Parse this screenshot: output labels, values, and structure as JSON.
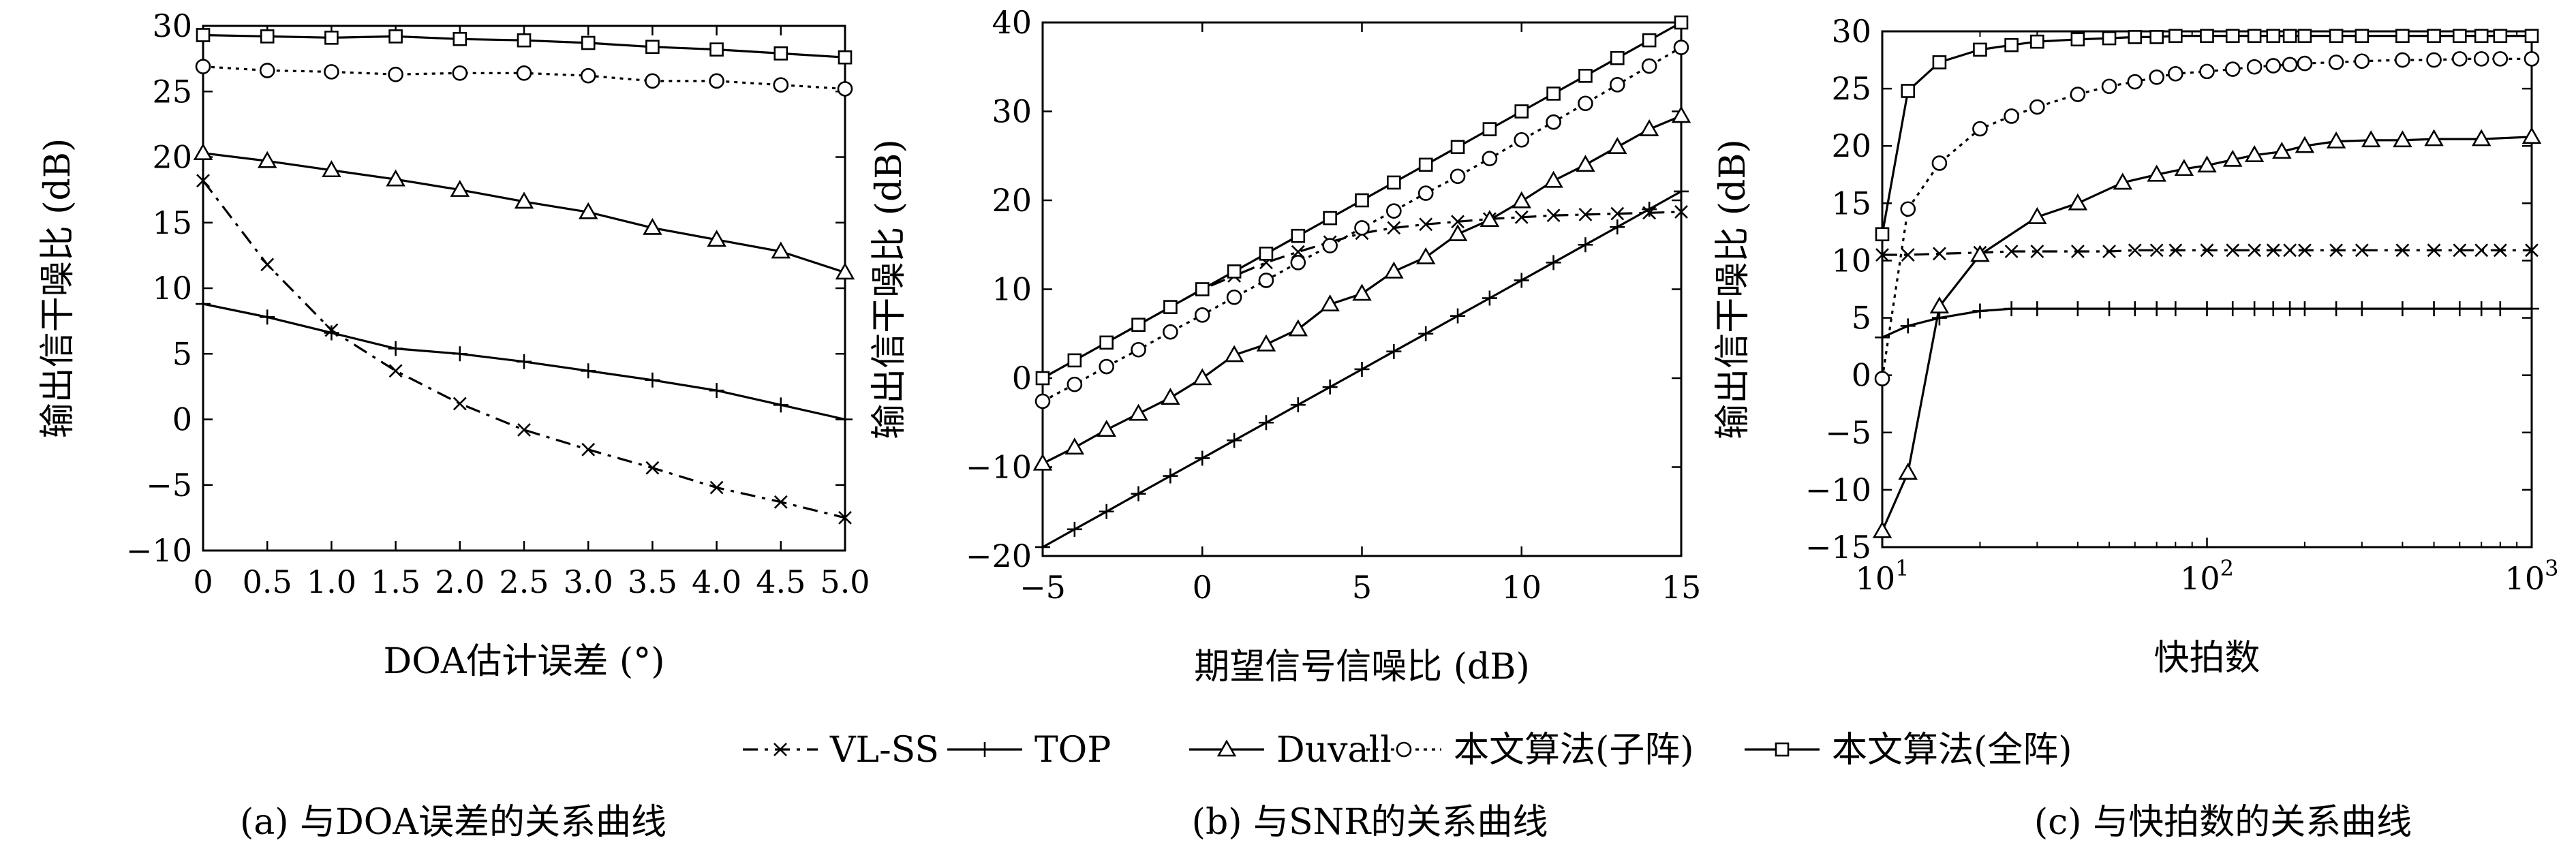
{
  "chart_data": [
    {
      "type": "line",
      "title": "",
      "caption": "(a) 与DOA误差的关系曲线",
      "xlabel": "DOA估计误差 (°)",
      "ylabel": "输出信干噪比 (dB)",
      "xscale": "linear",
      "xlim": [
        0,
        5.0
      ],
      "ylim": [
        -10,
        30
      ],
      "xticks": [
        0,
        0.5,
        1.0,
        1.5,
        2.0,
        2.5,
        3.0,
        3.5,
        4.0,
        4.5,
        5.0
      ],
      "xtick_labels": [
        "0",
        "0.5",
        "1.0",
        "1.5",
        "2.0",
        "2.5",
        "3.0",
        "3.5",
        "4.0",
        "4.5",
        "5.0"
      ],
      "yticks": [
        -10,
        -5,
        0,
        5,
        10,
        15,
        20,
        25,
        30
      ],
      "ytick_labels": [
        "−10",
        "−5",
        "0",
        "5",
        "10",
        "15",
        "20",
        "25",
        "30"
      ],
      "grid": false,
      "series": [
        {
          "name": "VL-SS",
          "x": [
            0,
            0.5,
            1.0,
            1.5,
            2.0,
            2.5,
            3.0,
            3.5,
            4.0,
            4.5,
            5.0
          ],
          "y": [
            18.2,
            11.8,
            6.8,
            3.7,
            1.2,
            -0.8,
            -2.3,
            -3.7,
            -5.2,
            -6.3,
            -7.5
          ]
        },
        {
          "name": "TOP",
          "x": [
            0,
            0.5,
            1.0,
            1.5,
            2.0,
            2.5,
            3.0,
            3.5,
            4.0,
            4.5,
            5.0
          ],
          "y": [
            8.8,
            7.8,
            6.6,
            5.4,
            5.0,
            4.4,
            3.7,
            3.0,
            2.2,
            1.1,
            0.0
          ]
        },
        {
          "name": "Duvall",
          "x": [
            0,
            0.5,
            1.0,
            1.5,
            2.0,
            2.5,
            3.0,
            3.5,
            4.0,
            4.5,
            5.0
          ],
          "y": [
            20.3,
            19.7,
            19.0,
            18.3,
            17.5,
            16.6,
            15.8,
            14.6,
            13.7,
            12.8,
            11.2
          ]
        },
        {
          "name": "本文算法(子阵)",
          "x": [
            0,
            0.5,
            1.0,
            1.5,
            2.0,
            2.5,
            3.0,
            3.5,
            4.0,
            4.5,
            5.0
          ],
          "y": [
            26.9,
            26.6,
            26.5,
            26.3,
            26.4,
            26.4,
            26.2,
            25.8,
            25.8,
            25.5,
            25.2
          ]
        },
        {
          "name": "本文算法(全阵)",
          "x": [
            0,
            0.5,
            1.0,
            1.5,
            2.0,
            2.5,
            3.0,
            3.5,
            4.0,
            4.5,
            5.0
          ],
          "y": [
            29.3,
            29.2,
            29.1,
            29.2,
            29.0,
            28.9,
            28.7,
            28.4,
            28.2,
            27.9,
            27.6
          ]
        }
      ]
    },
    {
      "type": "line",
      "title": "",
      "caption": "(b) 与SNR的关系曲线",
      "xlabel": "期望信号信噪比 (dB)",
      "ylabel": "输出信干噪比 (dB)",
      "xscale": "linear",
      "xlim": [
        -5,
        15
      ],
      "ylim": [
        -20,
        40
      ],
      "xticks": [
        -5,
        0,
        5,
        10,
        15
      ],
      "xtick_labels": [
        "−5",
        "0",
        "5",
        "10",
        "15"
      ],
      "yticks": [
        -20,
        -10,
        0,
        10,
        20,
        30,
        40
      ],
      "ytick_labels": [
        "−20",
        "−10",
        "0",
        "10",
        "20",
        "30",
        "40"
      ],
      "grid": false,
      "series": [
        {
          "name": "VL-SS",
          "x": [
            -5,
            -4,
            -3,
            -2,
            -1,
            0,
            1,
            2,
            3,
            4,
            5,
            6,
            7,
            8,
            9,
            10,
            11,
            12,
            13,
            14,
            15
          ],
          "y": [
            0.0,
            2.0,
            4.0,
            6.0,
            8.0,
            10.0,
            11.5,
            13.0,
            14.2,
            15.3,
            16.3,
            16.9,
            17.3,
            17.6,
            17.9,
            18.1,
            18.3,
            18.4,
            18.5,
            18.6,
            18.7
          ]
        },
        {
          "name": "TOP",
          "x": [
            -5,
            -4,
            -3,
            -2,
            -1,
            0,
            1,
            2,
            3,
            4,
            5,
            6,
            7,
            8,
            9,
            10,
            11,
            12,
            13,
            14,
            15
          ],
          "y": [
            -19.0,
            -17.0,
            -15.0,
            -13.0,
            -11.0,
            -9.0,
            -7.0,
            -5.0,
            -3.0,
            -1.0,
            1.0,
            3.0,
            5.0,
            7.0,
            9.0,
            11.0,
            13.0,
            15.0,
            17.0,
            19.0,
            21.0
          ]
        },
        {
          "name": "Duvall",
          "x": [
            -5,
            -4,
            -3,
            -2,
            -1,
            0,
            1,
            2,
            3,
            4,
            5,
            6,
            7,
            8,
            9,
            10,
            11,
            12,
            13,
            14,
            15
          ],
          "y": [
            -9.6,
            -7.8,
            -5.8,
            -4.0,
            -2.2,
            0.0,
            2.6,
            3.8,
            5.5,
            8.3,
            9.5,
            12.0,
            13.6,
            16.2,
            17.8,
            19.9,
            22.2,
            24.0,
            26.0,
            28.0,
            29.5
          ]
        },
        {
          "name": "本文算法(子阵)",
          "x": [
            -5,
            -4,
            -3,
            -2,
            -1,
            0,
            1,
            2,
            3,
            4,
            5,
            6,
            7,
            8,
            9,
            10,
            11,
            12,
            13,
            14,
            15
          ],
          "y": [
            -2.6,
            -0.7,
            1.3,
            3.2,
            5.2,
            7.1,
            9.1,
            11.0,
            13.0,
            14.9,
            16.9,
            18.8,
            20.8,
            22.7,
            24.7,
            26.8,
            28.8,
            30.9,
            33.0,
            35.1,
            37.2
          ]
        },
        {
          "name": "本文算法(全阵)",
          "x": [
            -5,
            -4,
            -3,
            -2,
            -1,
            0,
            1,
            2,
            3,
            4,
            5,
            6,
            7,
            8,
            9,
            10,
            11,
            12,
            13,
            14,
            15
          ],
          "y": [
            0.0,
            2.0,
            4.0,
            6.0,
            8.0,
            10.0,
            12.0,
            14.0,
            16.0,
            18.0,
            20.0,
            22.0,
            24.0,
            26.0,
            28.0,
            30.0,
            32.0,
            34.0,
            36.0,
            38.0,
            40.0
          ]
        }
      ]
    },
    {
      "type": "line",
      "title": "",
      "caption": "(c) 与快拍数的关系曲线",
      "xlabel": "快拍数",
      "ylabel": "输出信干噪比 (dB)",
      "xscale": "log",
      "xlim": [
        10,
        1000
      ],
      "ylim": [
        -15,
        30
      ],
      "xticks": [
        10,
        100,
        1000
      ],
      "xtick_labels": [
        [
          "10",
          "1"
        ],
        [
          "10",
          "2"
        ],
        [
          "10",
          "3"
        ]
      ],
      "yticks": [
        -15,
        -10,
        -5,
        0,
        5,
        10,
        15,
        20,
        25,
        30
      ],
      "ytick_labels": [
        "−15",
        "−10",
        "−5",
        "0",
        "5",
        "10",
        "15",
        "20",
        "25",
        "30"
      ],
      "grid": false,
      "series": [
        {
          "name": "VL-SS",
          "x": [
            10,
            12,
            15,
            20,
            25,
            30,
            40,
            50,
            60,
            70,
            80,
            100,
            120,
            140,
            160,
            180,
            200,
            250,
            300,
            400,
            500,
            600,
            700,
            800,
            1000
          ],
          "y": [
            10.5,
            10.5,
            10.6,
            10.7,
            10.8,
            10.8,
            10.8,
            10.8,
            10.9,
            10.9,
            10.9,
            10.9,
            10.9,
            10.9,
            10.9,
            10.9,
            10.9,
            10.9,
            10.9,
            10.9,
            10.9,
            10.9,
            10.9,
            10.9,
            10.9
          ]
        },
        {
          "name": "TOP",
          "x": [
            10,
            12,
            15,
            20,
            25,
            30,
            40,
            50,
            60,
            70,
            80,
            100,
            120,
            140,
            160,
            180,
            200,
            250,
            300,
            400,
            500,
            600,
            700,
            800,
            1000
          ],
          "y": [
            3.3,
            4.3,
            5.0,
            5.6,
            5.8,
            5.8,
            5.8,
            5.8,
            5.8,
            5.8,
            5.8,
            5.8,
            5.8,
            5.8,
            5.8,
            5.8,
            5.8,
            5.8,
            5.8,
            5.8,
            5.8,
            5.8,
            5.8,
            5.8,
            5.8
          ]
        },
        {
          "name": "Duvall",
          "x": [
            10,
            12,
            15,
            20,
            30,
            40,
            55,
            70,
            85,
            100,
            120,
            140,
            170,
            200,
            250,
            320,
            400,
            500,
            700,
            1000
          ],
          "y": [
            -13.6,
            -8.5,
            6.0,
            10.5,
            13.8,
            15.0,
            16.8,
            17.5,
            18.0,
            18.3,
            18.8,
            19.2,
            19.5,
            20.0,
            20.4,
            20.5,
            20.5,
            20.6,
            20.6,
            20.8
          ]
        },
        {
          "name": "本文算法(子阵)",
          "x": [
            10,
            12,
            15,
            20,
            25,
            30,
            40,
            50,
            60,
            70,
            80,
            100,
            120,
            140,
            160,
            180,
            200,
            250,
            300,
            400,
            500,
            600,
            700,
            800,
            1000
          ],
          "y": [
            -0.3,
            14.5,
            18.5,
            21.5,
            22.6,
            23.4,
            24.5,
            25.2,
            25.6,
            26.0,
            26.3,
            26.5,
            26.7,
            26.9,
            27.0,
            27.1,
            27.2,
            27.3,
            27.4,
            27.5,
            27.5,
            27.6,
            27.6,
            27.6,
            27.6
          ]
        },
        {
          "name": "本文算法(全阵)",
          "x": [
            10,
            12,
            15,
            20,
            25,
            30,
            40,
            50,
            60,
            70,
            80,
            100,
            120,
            140,
            160,
            180,
            200,
            250,
            300,
            400,
            500,
            600,
            700,
            800,
            1000
          ],
          "y": [
            12.3,
            24.8,
            27.3,
            28.4,
            28.8,
            29.1,
            29.3,
            29.4,
            29.5,
            29.5,
            29.6,
            29.6,
            29.6,
            29.6,
            29.6,
            29.6,
            29.6,
            29.6,
            29.6,
            29.6,
            29.6,
            29.6,
            29.6,
            29.6,
            29.6
          ]
        }
      ]
    }
  ],
  "legend": {
    "placement": "bottom-center",
    "entries": [
      "VL-SS",
      "TOP",
      "Duvall",
      "本文算法(子阵)",
      "本文算法(全阵)"
    ]
  }
}
